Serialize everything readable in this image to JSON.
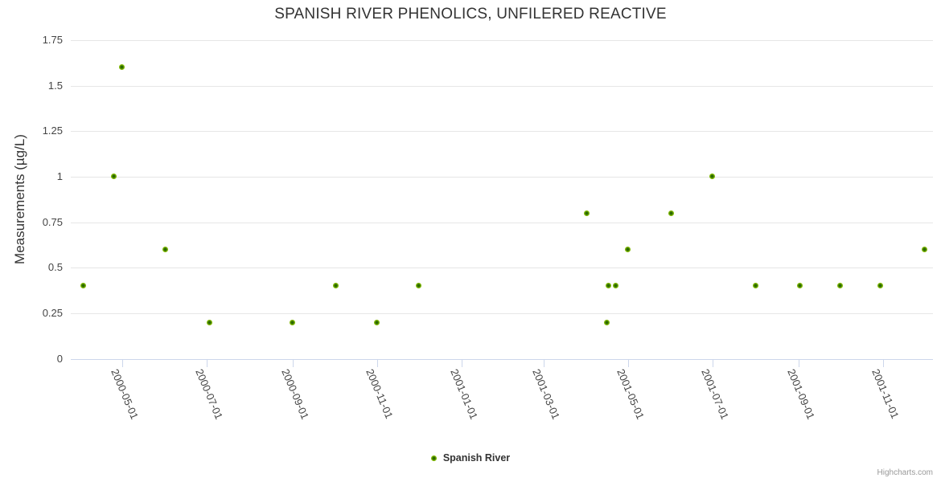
{
  "chart_data": {
    "type": "scatter",
    "title": "SPANISH RIVER PHENOLICS, UNFILERED REACTIVE",
    "xlabel": "",
    "ylabel": "Measurements (µg/L)",
    "ylim": [
      0,
      1.75
    ],
    "xlim": [
      "2000-03-25",
      "2001-12-07"
    ],
    "grid": true,
    "legend_position": "bottom-center",
    "yticks": [
      0,
      0.25,
      0.5,
      0.75,
      1,
      1.25,
      1.5,
      1.75
    ],
    "ytick_labels": [
      "0",
      "0.25",
      "0.5",
      "0.75",
      "1",
      "1.25",
      "1.5",
      "1.75"
    ],
    "xticks": [
      "2000-05-01",
      "2000-07-01",
      "2000-09-01",
      "2000-11-01",
      "2001-01-01",
      "2001-03-01",
      "2001-05-01",
      "2001-07-01",
      "2001-09-01",
      "2001-11-01"
    ],
    "series": [
      {
        "name": "Spanish River",
        "color": "#7db500",
        "marker_center_color": "#2d6b00",
        "points": [
          {
            "x": "2000-04-03",
            "y": 0.4
          },
          {
            "x": "2000-04-25",
            "y": 1.0
          },
          {
            "x": "2000-05-01",
            "y": 1.6
          },
          {
            "x": "2000-06-01",
            "y": 0.6
          },
          {
            "x": "2000-07-03",
            "y": 0.2
          },
          {
            "x": "2000-09-01",
            "y": 0.2
          },
          {
            "x": "2000-10-02",
            "y": 0.4
          },
          {
            "x": "2000-11-01",
            "y": 0.2
          },
          {
            "x": "2000-12-01",
            "y": 0.4
          },
          {
            "x": "2001-04-01",
            "y": 0.8
          },
          {
            "x": "2001-04-16",
            "y": 0.2
          },
          {
            "x": "2001-04-17",
            "y": 0.4
          },
          {
            "x": "2001-04-22",
            "y": 0.4
          },
          {
            "x": "2001-05-01",
            "y": 0.6
          },
          {
            "x": "2001-06-01",
            "y": 0.8
          },
          {
            "x": "2001-07-01",
            "y": 1.0
          },
          {
            "x": "2001-08-01",
            "y": 0.4
          },
          {
            "x": "2001-09-02",
            "y": 0.4
          },
          {
            "x": "2001-10-01",
            "y": 0.4
          },
          {
            "x": "2001-10-30",
            "y": 0.4
          },
          {
            "x": "2001-12-01",
            "y": 0.6
          }
        ]
      }
    ]
  },
  "colors": {
    "grid": "#e6e6e6",
    "axis": "#ccd6eb",
    "title_text": "#333333",
    "label_text": "#444444",
    "credits_text": "#999999"
  },
  "credits": {
    "text": "Highcharts.com"
  }
}
